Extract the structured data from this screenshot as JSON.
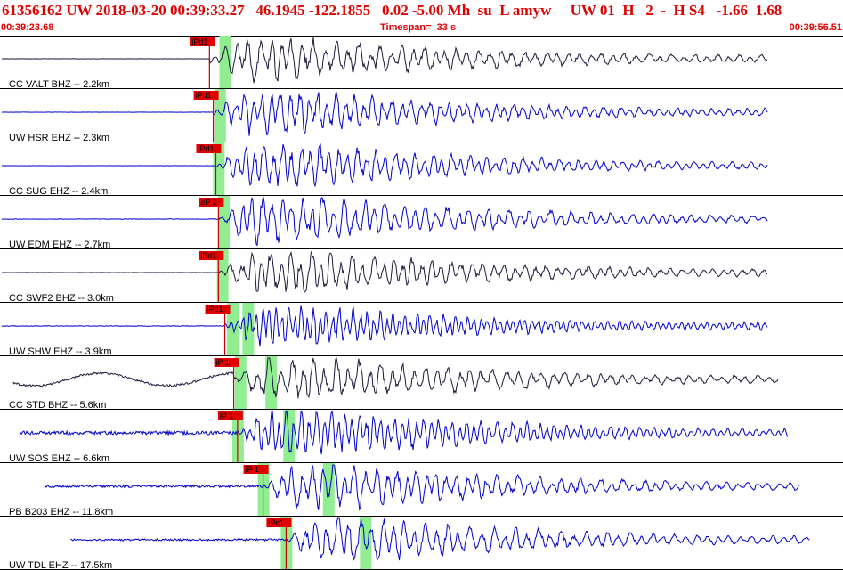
{
  "header": {
    "title": "61356162 UW 2018-03-20 00:39:33.27   46.1945 -122.1855   0.02 -5.00 Mh  su  L amyw     UW 01  H   2  -  H S4   -1.66  1.68",
    "start_time": "00:39:23.68",
    "end_time": "00:39:56.51",
    "timespan": "Timespan=  33 s"
  },
  "colors": {
    "title": "#e00000",
    "trace_blue": "#0000cc",
    "trace_dark": "#1a1a3a",
    "pick_box": "#e00000",
    "pick_line": "#cc0000",
    "window": "#90ee90",
    "divider": "#000000"
  },
  "channels": [
    {
      "label": "CC VALT BHZ -- 2.2km",
      "pick": "iPd1",
      "color": "dark",
      "pick_t": 8.2,
      "win_t": 8.8,
      "start_t": 0.0,
      "noise": 0.04,
      "amp": 1.0,
      "dom": 0.9
    },
    {
      "label": "UW HSR EHZ -- 2.3km",
      "pick": "iPd1",
      "color": "blue",
      "pick_t": 8.35,
      "win_t": 8.6,
      "start_t": 0.0,
      "noise": 0.03,
      "amp": 1.0,
      "dom": 1.1
    },
    {
      "label": "CC SUG EHZ -- 2.4km",
      "pick": "iPd1",
      "color": "blue",
      "pick_t": 8.45,
      "win_t": 8.55,
      "start_t": 0.0,
      "noise": 0.03,
      "amp": 1.0,
      "dom": 1.1
    },
    {
      "label": "UW EDM EHZ -- 2.7km",
      "pick": "eP 2",
      "color": "blue",
      "pick_t": 8.55,
      "win_t": 8.75,
      "start_t": 0.0,
      "noise": 0.06,
      "amp": 1.1,
      "dom": 1.0
    },
    {
      "label": "CC SWF2 BHZ -- 3.0km",
      "pick": "iPd1",
      "color": "dark",
      "pick_t": 8.55,
      "win_t": 8.7,
      "start_t": 0.0,
      "noise": 0.03,
      "amp": 1.0,
      "dom": 1.0
    },
    {
      "label": "UW SHW EHZ -- 3.9km",
      "pick": "iPd1",
      "color": "blue",
      "pick_t": 8.8,
      "win_t": 9.1,
      "start_t": 0.0,
      "noise": 0.04,
      "amp": 0.9,
      "dom": 1.6
    },
    {
      "label": "CC STD BHZ -- 5.6km",
      "pick": "iP 1",
      "color": "dark",
      "pick_t": 9.15,
      "win_t": 9.4,
      "start_t": 0.45,
      "noise": 0.0,
      "amp": 1.0,
      "dom": 0.9
    },
    {
      "label": "UW SOS EHZ -- 6.6km",
      "pick": "iP 1",
      "color": "blue",
      "pick_t": 9.3,
      "win_t": 9.3,
      "start_t": 0.7,
      "noise": 0.22,
      "amp": 1.1,
      "dom": 1.4
    },
    {
      "label": "PB B203 EHZ -- 11.8km",
      "pick": "iP 1",
      "color": "blue",
      "pick_t": 10.3,
      "win_t": 10.3,
      "start_t": 1.7,
      "noise": 0.15,
      "amp": 1.0,
      "dom": 1.0
    },
    {
      "label": "UW TDL EHZ -- 17.5km",
      "pick": "iPc1",
      "color": "blue",
      "pick_t": 11.2,
      "win_t": 11.2,
      "start_t": 2.7,
      "noise": 0.12,
      "amp": 1.0,
      "dom": 0.9
    }
  ]
}
